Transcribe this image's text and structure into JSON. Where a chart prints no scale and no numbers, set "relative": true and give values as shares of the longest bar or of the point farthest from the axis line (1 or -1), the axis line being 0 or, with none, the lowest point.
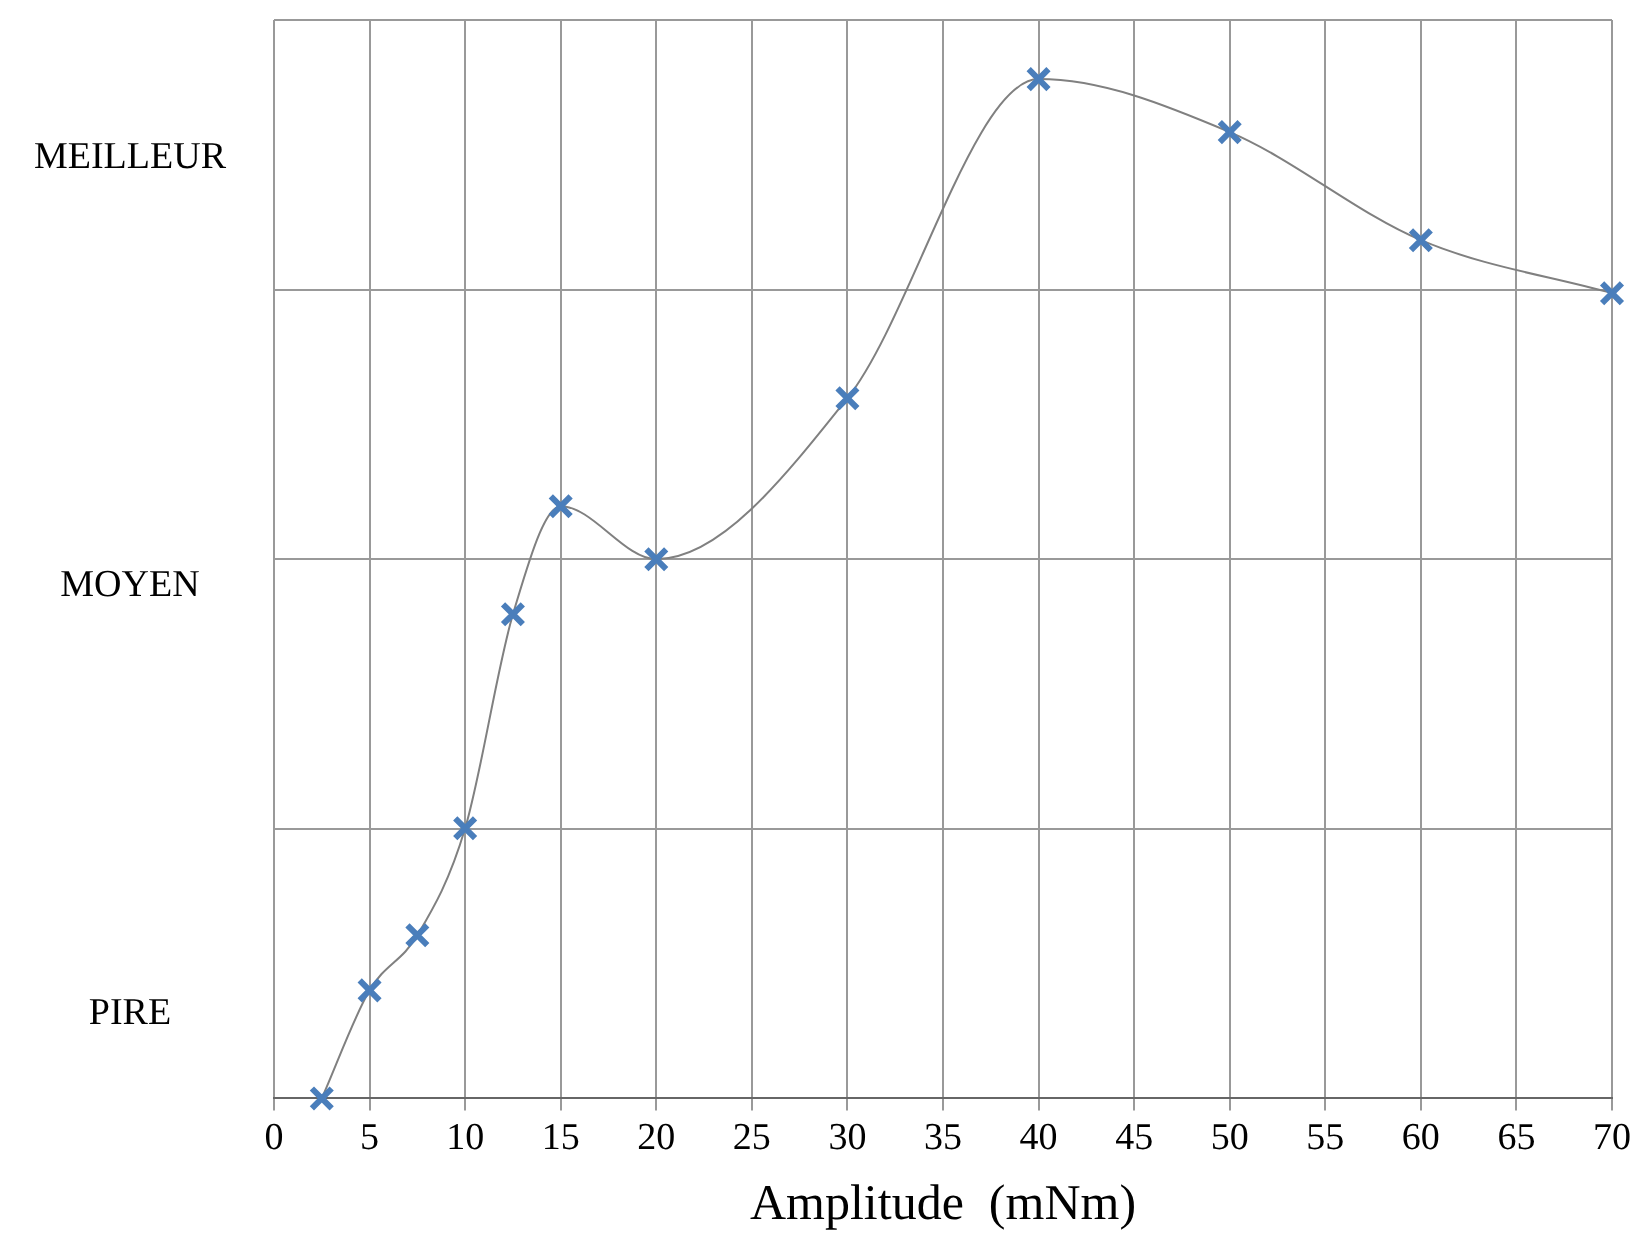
{
  "chart_data": {
    "type": "line",
    "xlabel": "Amplitude  (mNm)",
    "relative": true,
    "annotations": [
      "MEILLEUR",
      "MOYEN",
      "PIRE"
    ],
    "x": [
      2.5,
      5,
      7.5,
      10,
      12.5,
      15,
      20,
      30,
      40,
      50,
      60,
      70
    ],
    "series": [
      {
        "color": "#4a7ebb",
        "values": [
          0,
          0.106,
          0.16,
          0.265,
          0.475,
          0.581,
          0.529,
          0.687,
          1,
          0.948,
          0.842,
          0.79
        ]
      }
    ],
    "xlim": [
      0,
      70
    ],
    "xticks": [
      0,
      5,
      10,
      15,
      20,
      25,
      30,
      35,
      40,
      45,
      50,
      55,
      60,
      65,
      70
    ],
    "grid": true,
    "marker": "cross",
    "line_style": "solid",
    "legend": false
  }
}
